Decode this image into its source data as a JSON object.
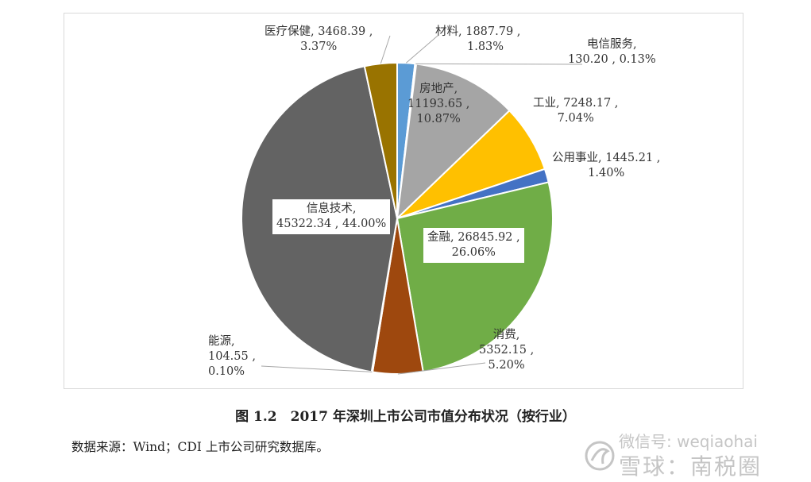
{
  "chart_data": {
    "type": "pie",
    "slices": [
      {
        "name": "材料",
        "value": 1887.79,
        "percent": "1.83%",
        "label_line1": "材料, 1887.79 ,",
        "label_line2": "1.83%",
        "color": "#5b9bd5"
      },
      {
        "name": "电信服务",
        "value": 130.2,
        "percent": "0.13%",
        "label_line1": "电信服务,",
        "label_line2": "130.20 , 0.13%",
        "color": "#264478"
      },
      {
        "name": "房地产",
        "value": 11193.65,
        "percent": "10.87%",
        "label_line1": "房地产,",
        "label_line2": "11193.65 ,",
        "label_line3": "10.87%",
        "color": "#a5a5a5"
      },
      {
        "name": "工业",
        "value": 7248.17,
        "percent": "7.04%",
        "label_line1": "工业, 7248.17 ,",
        "label_line2": "7.04%",
        "color": "#ffc000"
      },
      {
        "name": "公用事业",
        "value": 1445.21,
        "percent": "1.40%",
        "label_line1": "公用事业, 1445.21 ,",
        "label_line2": "1.40%",
        "color": "#4472c4"
      },
      {
        "name": "金融",
        "value": 26845.92,
        "percent": "26.06%",
        "label_line1": "金融, 26845.92 ,",
        "label_line2": "26.06%",
        "color": "#70ad47"
      },
      {
        "name": "消费",
        "value": 5352.15,
        "percent": "5.20%",
        "label_line1": "消费,",
        "label_line2": "5352.15 ,",
        "label_line3": "5.20%",
        "color": "#9e480e"
      },
      {
        "name": "能源",
        "value": 104.55,
        "percent": "0.10%",
        "label_line1": "能源,",
        "label_line2": "104.55 ,",
        "label_line3": "0.10%",
        "color": "#843c0c"
      },
      {
        "name": "信息技术",
        "value": 45322.34,
        "percent": "44.00%",
        "label_line1": "信息技术,",
        "label_line2": "45322.34 , 44.00%",
        "color": "#636363"
      },
      {
        "name": "医疗保健",
        "value": 3468.39,
        "percent": "3.37%",
        "label_line1": "医疗保健, 3468.39 ,",
        "label_line2": "3.37%",
        "color": "#997300"
      }
    ]
  },
  "caption": "图 1.2　2017 年深圳上市公司市值分布状况（按行业）",
  "source": "数据来源：Wind；CDI 上市公司研究数据库。",
  "watermark": {
    "line1": "微信号: weqiaohai",
    "line2": "雪球：南税圈"
  }
}
